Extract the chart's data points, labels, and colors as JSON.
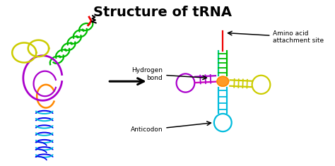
{
  "title": "Structure of tRNA",
  "title_fontsize": 14,
  "title_fontweight": "bold",
  "bg_color": "#ffffff",
  "arrow_label": "Hydrogen\nbond",
  "arrow_label2": "Amino acid\nattachment site",
  "arrow_label3": "Anticodon",
  "colors": {
    "red": "#ee0000",
    "green": "#00bb00",
    "cyan": "#00bbdd",
    "blue": "#0000ee",
    "purple": "#aa00cc",
    "orange": "#ff8800",
    "yellow": "#cccc00",
    "magenta": "#cc00bb",
    "light_cyan": "#00bbdd",
    "teal": "#00cc88",
    "dark": "#111111"
  }
}
